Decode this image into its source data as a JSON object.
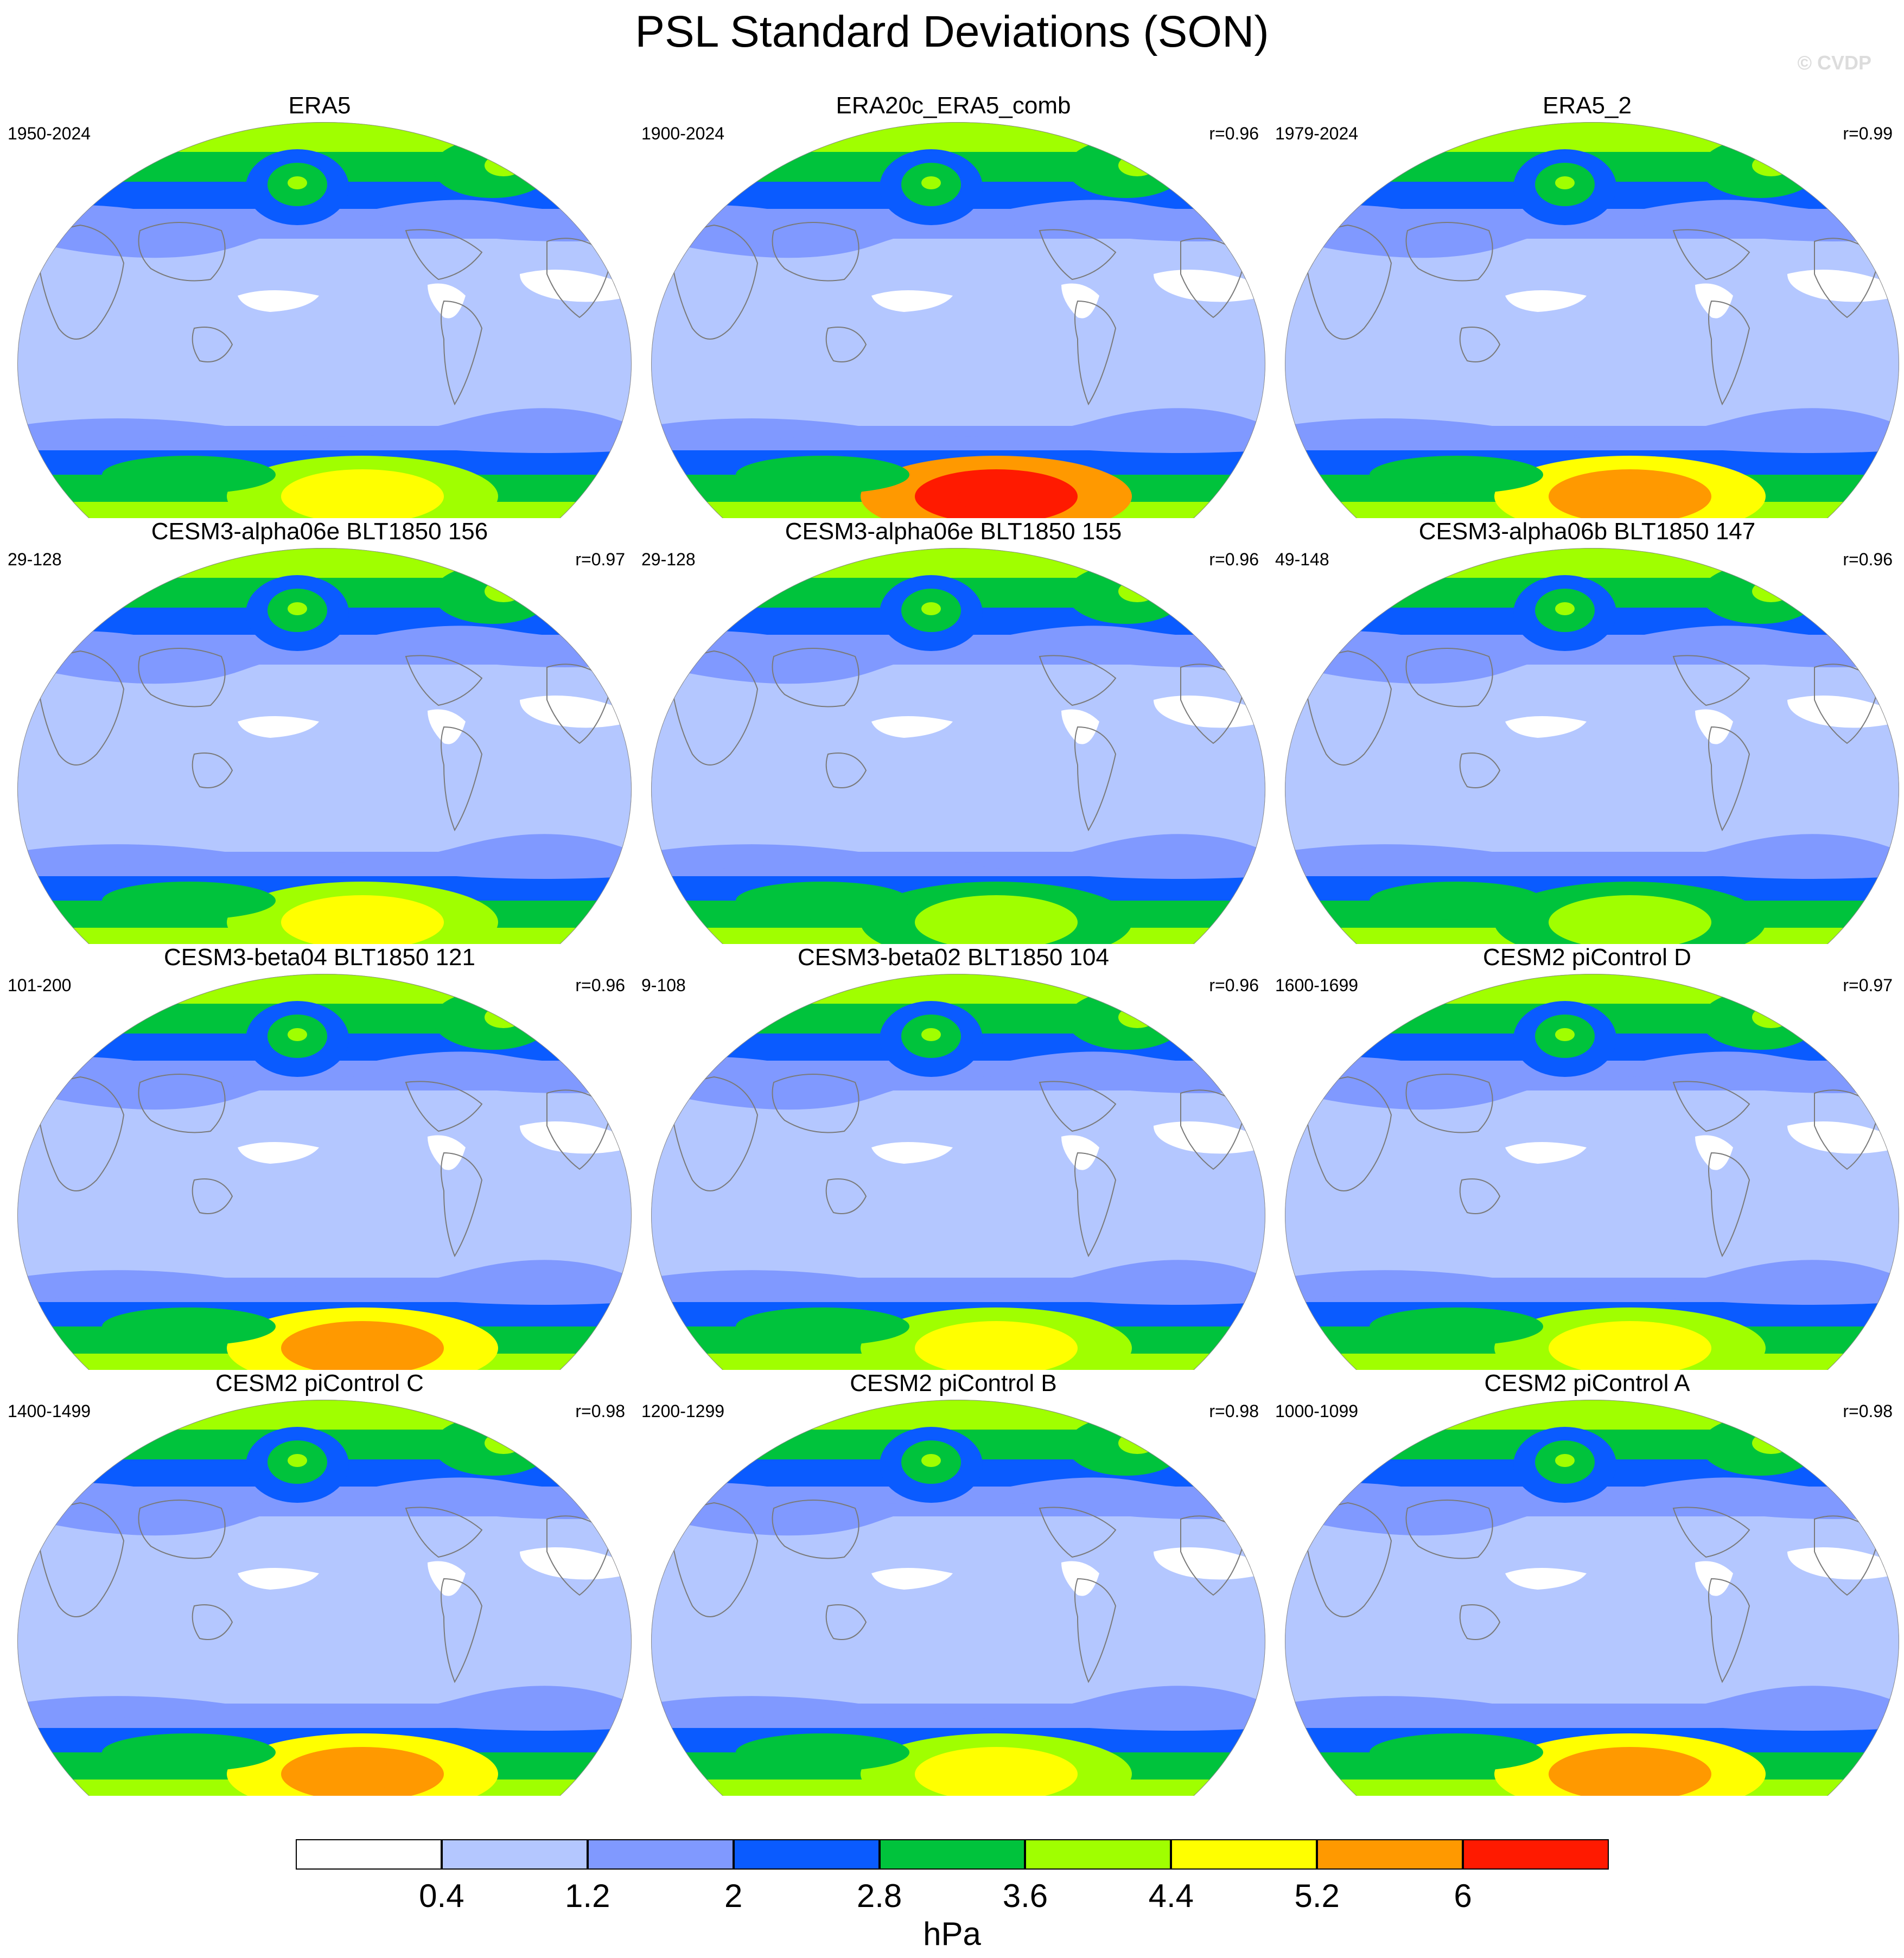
{
  "title": "PSL Standard Deviations (SON)",
  "watermark": "© CVDP",
  "colorbar": {
    "unit": "hPa",
    "ticks": [
      "0.4",
      "1.2",
      "2",
      "2.8",
      "3.6",
      "4.4",
      "5.2",
      "6"
    ],
    "colors": [
      "#ffffff",
      "#b4c7ff",
      "#8099ff",
      "#0a5bff",
      "#00c33c",
      "#a0ff00",
      "#ffff00",
      "#ff9900",
      "#ff1a00"
    ]
  },
  "panels": [
    {
      "title": "ERA5",
      "years": "1950-2024",
      "corr": "",
      "south_max": 6
    },
    {
      "title": "ERA20c_ERA5_comb",
      "years": "1900-2024",
      "corr": "r=0.96",
      "south_max": 8
    },
    {
      "title": "ERA5_2",
      "years": "1979-2024",
      "corr": "r=0.99",
      "south_max": 7
    },
    {
      "title": "CESM3-alpha06e BLT1850 156",
      "years": "29-128",
      "corr": "r=0.97",
      "south_max": 6
    },
    {
      "title": "CESM3-alpha06e BLT1850 155",
      "years": "29-128",
      "corr": "r=0.96",
      "south_max": 5
    },
    {
      "title": "CESM3-alpha06b BLT1850 147",
      "years": "49-148",
      "corr": "r=0.96",
      "south_max": 5
    },
    {
      "title": "CESM3-beta04 BLT1850 121",
      "years": "101-200",
      "corr": "r=0.96",
      "south_max": 7
    },
    {
      "title": "CESM3-beta02 BLT1850 104",
      "years": "9-108",
      "corr": "r=0.96",
      "south_max": 6
    },
    {
      "title": "CESM2 piControl D",
      "years": "1600-1699",
      "corr": "r=0.97",
      "south_max": 6
    },
    {
      "title": "CESM2 piControl C",
      "years": "1400-1499",
      "corr": "r=0.98",
      "south_max": 7
    },
    {
      "title": "CESM2 piControl B",
      "years": "1200-1299",
      "corr": "r=0.98",
      "south_max": 6
    },
    {
      "title": "CESM2 piControl A",
      "years": "1000-1099",
      "corr": "r=0.98",
      "south_max": 7
    }
  ]
}
